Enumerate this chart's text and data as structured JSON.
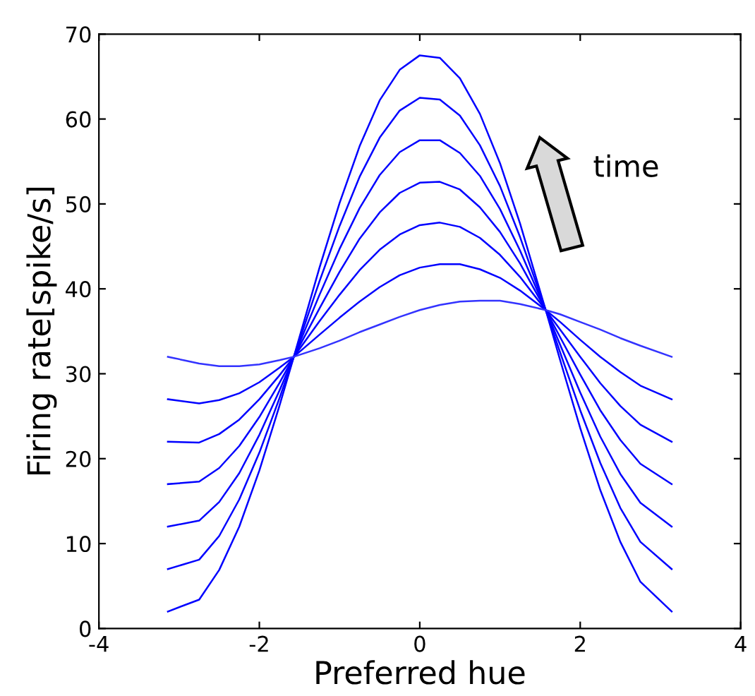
{
  "chart_data": {
    "type": "line",
    "xlabel": "Preferred hue",
    "ylabel": "Firing rate[spike/s]",
    "annotations": [
      "time"
    ],
    "x": [
      -3.14,
      -2.75,
      -2.5,
      -2.25,
      -2,
      -1.75,
      -1.57,
      -1.25,
      -1,
      -0.75,
      -0.5,
      -0.25,
      0,
      0.25,
      0.5,
      0.75,
      1,
      1.25,
      1.57,
      1.75,
      2,
      2.25,
      2.5,
      2.75,
      3.14
    ],
    "series": [
      {
        "color": "#0000ff",
        "values": [
          2.0,
          3.4,
          6.9,
          12.0,
          18.6,
          26.2,
          32.0,
          42.5,
          50.1,
          56.8,
          62.2,
          65.8,
          67.5,
          67.2,
          64.8,
          60.6,
          54.8,
          47.7,
          37.5,
          31.6,
          23.6,
          16.3,
          10.2,
          5.5,
          2.0
        ]
      },
      {
        "color": "#0000ff",
        "values": [
          7.0,
          8.1,
          10.9,
          15.2,
          20.7,
          27.1,
          32.0,
          40.9,
          47.4,
          53.2,
          57.8,
          61.0,
          62.5,
          62.3,
          60.4,
          56.9,
          52.1,
          46.1,
          37.5,
          32.5,
          25.7,
          19.5,
          14.2,
          10.2,
          7.0
        ]
      },
      {
        "color": "#0000ff",
        "values": [
          12.0,
          12.7,
          14.9,
          18.3,
          22.8,
          28.0,
          32.0,
          39.3,
          44.7,
          49.5,
          53.4,
          56.1,
          57.5,
          57.5,
          56.0,
          53.3,
          49.4,
          44.5,
          37.5,
          33.4,
          27.8,
          22.6,
          18.2,
          14.8,
          12.0
        ]
      },
      {
        "color": "#0000ff",
        "values": [
          17.0,
          17.3,
          18.9,
          21.5,
          24.9,
          28.9,
          32.0,
          37.7,
          42.0,
          45.9,
          49.0,
          51.3,
          52.5,
          52.6,
          51.7,
          49.6,
          46.7,
          43.0,
          37.5,
          34.3,
          29.9,
          25.7,
          22.2,
          19.4,
          17.0
        ]
      },
      {
        "color": "#0000ff",
        "values": [
          22.0,
          21.9,
          22.9,
          24.6,
          27.0,
          29.8,
          32.0,
          36.2,
          39.3,
          42.2,
          44.6,
          46.4,
          47.5,
          47.8,
          47.3,
          46.0,
          44.0,
          41.4,
          37.5,
          35.2,
          32.0,
          28.9,
          26.2,
          24.0,
          22.0
        ]
      },
      {
        "color": "#0000ff",
        "values": [
          27.0,
          26.5,
          26.9,
          27.7,
          29.0,
          30.7,
          32.0,
          34.6,
          36.6,
          38.5,
          40.2,
          41.6,
          42.5,
          42.9,
          42.9,
          42.3,
          41.3,
          39.8,
          37.5,
          36.1,
          34.0,
          32.0,
          30.2,
          28.6,
          27.0
        ]
      },
      {
        "color": "#3333ff",
        "values": [
          32.0,
          31.2,
          30.9,
          30.9,
          31.1,
          31.6,
          32.0,
          33.0,
          33.9,
          34.9,
          35.8,
          36.7,
          37.5,
          38.1,
          38.5,
          38.6,
          38.6,
          38.2,
          37.5,
          37.0,
          36.1,
          35.2,
          34.2,
          33.3,
          32.0
        ]
      }
    ],
    "xlim": [
      -4,
      4
    ],
    "xticks": [
      -4,
      -2,
      0,
      2,
      4
    ],
    "ylim": [
      0,
      70
    ],
    "yticks": [
      0,
      10,
      20,
      30,
      40,
      50,
      60,
      70
    ],
    "grid": false,
    "marker": "none",
    "line_style": "solid"
  }
}
